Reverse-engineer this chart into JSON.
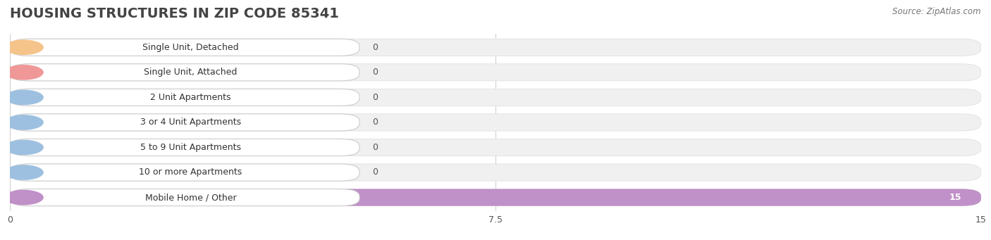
{
  "title": "HOUSING STRUCTURES IN ZIP CODE 85341",
  "source": "Source: ZipAtlas.com",
  "categories": [
    "Single Unit, Detached",
    "Single Unit, Attached",
    "2 Unit Apartments",
    "3 or 4 Unit Apartments",
    "5 to 9 Unit Apartments",
    "10 or more Apartments",
    "Mobile Home / Other"
  ],
  "values": [
    0,
    0,
    0,
    0,
    0,
    0,
    15
  ],
  "bar_colors": [
    "#f5c48a",
    "#f09898",
    "#9dc0e0",
    "#9dc0e0",
    "#9dc0e0",
    "#9dc0e0",
    "#c090c8"
  ],
  "bar_edge_colors": [
    "#e8a060",
    "#d06868",
    "#6090c0",
    "#6090c0",
    "#6090c0",
    "#6090c0",
    "#9868b8"
  ],
  "xlim": [
    0,
    15
  ],
  "xticks": [
    0,
    7.5,
    15
  ],
  "background_color": "#ffffff",
  "bar_bg_color": "#f0f0f0",
  "label_bg_color": "#ffffff",
  "title_fontsize": 14,
  "label_fontsize": 9,
  "value_fontsize": 9,
  "source_fontsize": 8.5
}
